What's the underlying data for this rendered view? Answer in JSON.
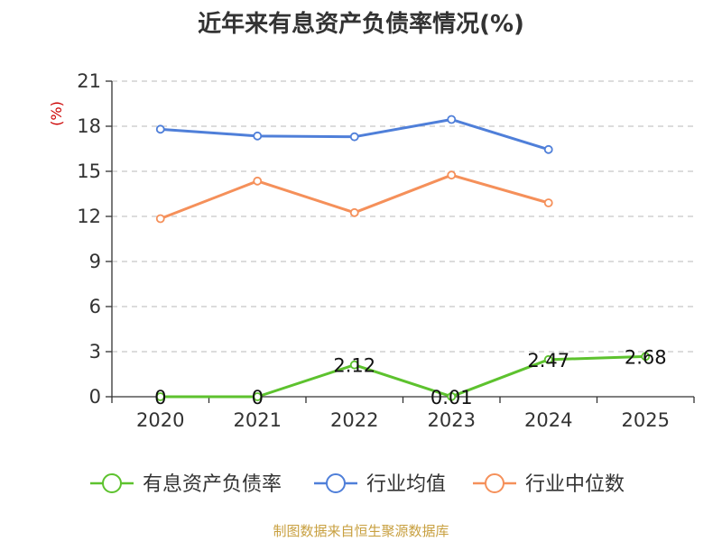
{
  "title": "近年来有息资产负债率情况(%)",
  "source": "制图数据来自恒生聚源数据库",
  "chart_data": {
    "type": "line",
    "title": "近年来有息资产负债率情况(%)",
    "ylabel": "(%)",
    "xlabel": "",
    "categories": [
      "2020",
      "2021",
      "2022",
      "2023",
      "2024",
      "2025"
    ],
    "ylim": [
      0,
      21
    ],
    "yticks": [
      0,
      3,
      6,
      9,
      12,
      15,
      18,
      21
    ],
    "grid": true,
    "legend_position": "bottom",
    "series": [
      {
        "name": "有息资产负债率",
        "color": "#5dc22e",
        "values": [
          0,
          0,
          2.12,
          0.01,
          2.47,
          2.68
        ],
        "labels": [
          "0",
          "0",
          "2.12",
          "0.01",
          "2.47",
          "2.68"
        ]
      },
      {
        "name": "行业均值",
        "color": "#4f7fd9",
        "values": [
          17.8,
          17.35,
          17.3,
          18.45,
          16.45,
          null
        ]
      },
      {
        "name": "行业中位数",
        "color": "#f5905a",
        "values": [
          11.85,
          14.35,
          12.25,
          14.75,
          12.9,
          null
        ]
      }
    ]
  }
}
